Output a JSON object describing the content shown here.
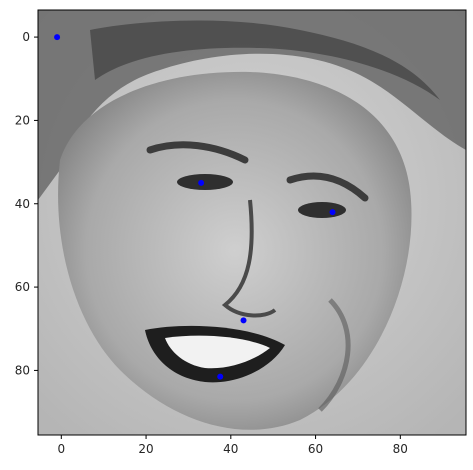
{
  "chart_data": {
    "type": "scatter",
    "title": "",
    "xlabel": "",
    "ylabel": "",
    "xlim": [
      -5.5,
      95.5
    ],
    "ylim": [
      95.5,
      -6.5
    ],
    "xticks": [
      0,
      20,
      40,
      60,
      80
    ],
    "yticks": [
      0,
      20,
      40,
      60,
      80
    ],
    "y_axis_inverted": true,
    "grid": false,
    "legend": "none",
    "background_image": "grayscale-face-photo",
    "series": [
      {
        "marker_color": "#0000ff",
        "points": [
          {
            "x": -1,
            "y": 0
          },
          {
            "x": 33,
            "y": 35
          },
          {
            "x": 64,
            "y": 42
          },
          {
            "x": 43,
            "y": 68
          },
          {
            "x": 37.5,
            "y": 81.5
          }
        ]
      }
    ]
  },
  "colors": {
    "axes": "#000000",
    "tick_text": "#262626",
    "marker": "#0000ff"
  }
}
